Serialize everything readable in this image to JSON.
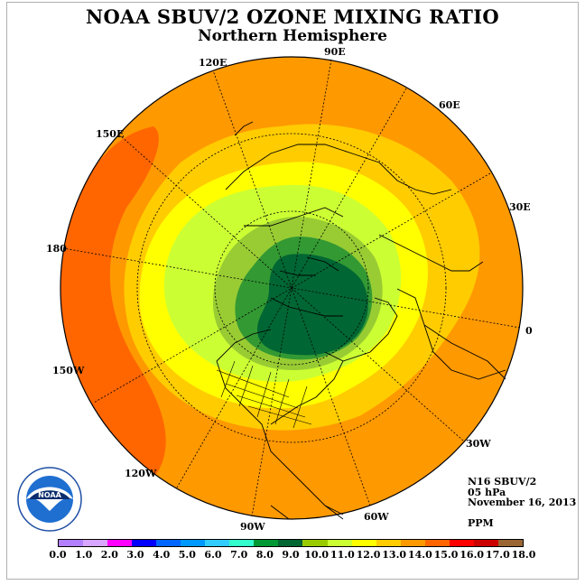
{
  "title": "NOAA SBUV/2 OZONE MIXING RATIO",
  "subtitle": "Northern Hemisphere",
  "longitude_labels": [
    "90E",
    "60E",
    "30E",
    "0",
    "30W",
    "60W",
    "90W",
    "120W",
    "150W",
    "180",
    "150E",
    "120E"
  ],
  "info": {
    "satellite": "N16 SBUV/2",
    "level": "05 hPa",
    "date": "November 16, 2013",
    "units": "PPM"
  },
  "logo_text": "NOAA",
  "logo_ring_text": "NATIONAL OCEANIC AND ATMOSPHERIC ADMINISTRATION · U.S. DEPARTMENT OF COMMERCE",
  "colors": {
    "dark_green": "#006633",
    "mid_green": "#339933",
    "light_green": "#99cc33",
    "yellow_green": "#ccff33",
    "yellow": "#ffff00",
    "gold": "#ffcc00",
    "orange": "#ff9900",
    "dark_orange": "#ff6600"
  },
  "scale": {
    "labels": [
      "0.0",
      "1.0",
      "2.0",
      "3.0",
      "4.0",
      "5.0",
      "6.0",
      "7.0",
      "8.0",
      "9.0",
      "10.0",
      "11.0",
      "12.0",
      "13.0",
      "14.0",
      "15.0",
      "16.0",
      "17.0",
      "18.0"
    ],
    "colors": [
      "#b380ff",
      "#d9a6ff",
      "#ff00ff",
      "#0000ff",
      "#0066ff",
      "#0099ff",
      "#33ccff",
      "#33ffcc",
      "#009933",
      "#006633",
      "#99cc00",
      "#ccff33",
      "#ffff00",
      "#ffcc00",
      "#ff9900",
      "#ff6600",
      "#ff0000",
      "#cc0000",
      "#996633"
    ]
  }
}
